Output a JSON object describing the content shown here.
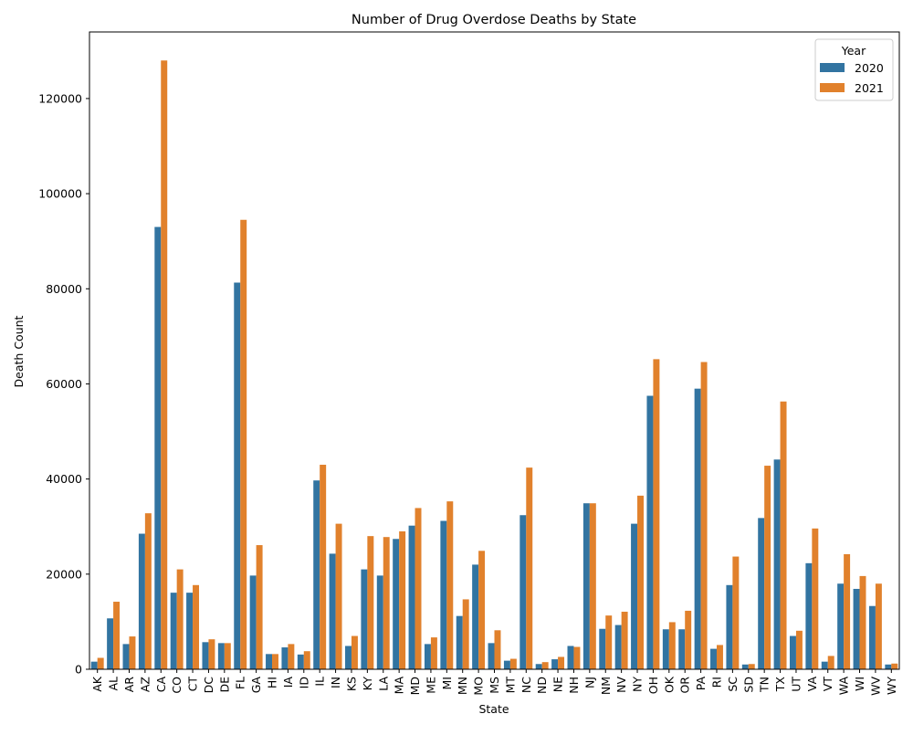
{
  "chart_data": {
    "type": "bar",
    "title": "Number of Drug Overdose Deaths by State",
    "xlabel": "State",
    "ylabel": "Death Count",
    "ylim": [
      0,
      134000
    ],
    "yticks": [
      0,
      20000,
      40000,
      60000,
      80000,
      100000,
      120000
    ],
    "ytick_labels": [
      "0",
      "20000",
      "40000",
      "60000",
      "80000",
      "100000",
      "120000"
    ],
    "grid": false,
    "legend": {
      "title": "Year",
      "placement": "top-right"
    },
    "categories": [
      "AK",
      "AL",
      "AR",
      "AZ",
      "CA",
      "CO",
      "CT",
      "DC",
      "DE",
      "FL",
      "GA",
      "HI",
      "IA",
      "ID",
      "IL",
      "IN",
      "KS",
      "KY",
      "LA",
      "MA",
      "MD",
      "ME",
      "MI",
      "MN",
      "MO",
      "MS",
      "MT",
      "NC",
      "ND",
      "NE",
      "NH",
      "NJ",
      "NM",
      "NV",
      "NY",
      "OH",
      "OK",
      "OR",
      "PA",
      "RI",
      "SC",
      "SD",
      "TN",
      "TX",
      "UT",
      "VA",
      "VT",
      "WA",
      "WI",
      "WV",
      "WY"
    ],
    "series": [
      {
        "name": "2020",
        "color": "#3274a1",
        "values": [
          1600,
          10700,
          5300,
          28500,
          93000,
          16100,
          16100,
          5700,
          5500,
          81300,
          19700,
          3200,
          4600,
          3100,
          39700,
          24300,
          4900,
          21000,
          19700,
          27400,
          30200,
          5300,
          31200,
          11200,
          22000,
          5500,
          1800,
          32400,
          1100,
          2100,
          4900,
          34900,
          8500,
          9300,
          30600,
          57500,
          8400,
          8400,
          59000,
          4300,
          17700,
          1000,
          31800,
          44100,
          7000,
          22300,
          1600,
          18000,
          16900,
          13300,
          1000
        ]
      },
      {
        "name": "2021",
        "color": "#e1812c",
        "values": [
          2400,
          14200,
          6900,
          32800,
          128000,
          21000,
          17700,
          6300,
          5500,
          94500,
          26100,
          3200,
          5300,
          3800,
          43000,
          30600,
          7000,
          28000,
          27800,
          29000,
          33900,
          6700,
          35300,
          14700,
          24900,
          8200,
          2200,
          42400,
          1500,
          2600,
          4700,
          34900,
          11300,
          12100,
          36500,
          65200,
          9900,
          12300,
          64600,
          5100,
          23700,
          1100,
          42800,
          56300,
          8100,
          29600,
          2800,
          24200,
          19600,
          18000,
          1200
        ]
      }
    ]
  }
}
